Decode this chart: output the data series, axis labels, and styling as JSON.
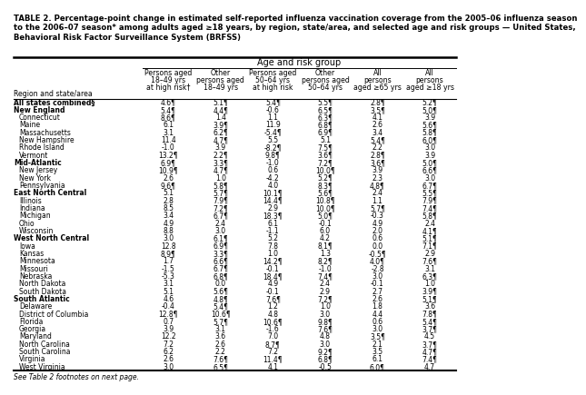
{
  "title": "TABLE 2. Percentage-point change in estimated self-reported influenza vaccination coverage from the 2005–06 influenza season\nto the 2006–07 season* among adults aged ≥18 years, by region, state/area, and selected age and risk groups — United States,\nBehavioral Risk Factor Surveillance System (BRFSS)",
  "col_headers_line1": [
    "Persons aged",
    "Other",
    "Persons aged",
    "Other",
    "All",
    "All"
  ],
  "col_headers_line2": [
    "18–49 yrs",
    "persons aged",
    "50–64 yrs",
    "persons aged",
    "persons",
    "persons"
  ],
  "col_headers_line3": [
    "at high risk†",
    "18–49 yrs",
    "at high risk",
    "50–64 yrs",
    "aged ≥65 yrs",
    "aged ≥18 yrs"
  ],
  "col_header_span": "Age and risk group",
  "row_label_header": "Region and state/area",
  "rows": [
    {
      "label": "All states combined§",
      "bold": true,
      "indent": 0,
      "vals": [
        "4.6¶",
        "5.1¶",
        "5.4¶",
        "5.5¶",
        "2.8¶",
        "5.2¶"
      ]
    },
    {
      "label": "New England",
      "bold": true,
      "indent": 0,
      "vals": [
        "5.4¶",
        "4.4¶",
        "-0.6",
        "6.5¶",
        "3.5¶",
        "5.0¶"
      ]
    },
    {
      "label": "Connecticut",
      "bold": false,
      "indent": 1,
      "vals": [
        "8.6¶",
        "1.4",
        "1.1",
        "6.3¶",
        "4.1",
        "3.9"
      ]
    },
    {
      "label": "Maine",
      "bold": false,
      "indent": 1,
      "vals": [
        "6.1",
        "3.9¶",
        "11.9",
        "6.8¶",
        "2.6",
        "5.6¶"
      ]
    },
    {
      "label": "Massachusetts",
      "bold": false,
      "indent": 1,
      "vals": [
        "3.1",
        "6.2¶",
        "-5.4¶",
        "6.9¶",
        "3.4",
        "5.8¶"
      ]
    },
    {
      "label": "New Hampshire",
      "bold": false,
      "indent": 1,
      "vals": [
        "11.4",
        "4.7¶",
        "5.5",
        "5.1",
        "5.4¶",
        "6.0¶"
      ]
    },
    {
      "label": "Rhode Island",
      "bold": false,
      "indent": 1,
      "vals": [
        "-1.0",
        "3.9",
        "-8.2¶",
        "7.5¶",
        "2.2",
        "3.0"
      ]
    },
    {
      "label": "Vermont",
      "bold": false,
      "indent": 1,
      "vals": [
        "13.2¶",
        "2.2¶",
        "9.8¶",
        "3.6¶",
        "2.8¶",
        "3.9"
      ]
    },
    {
      "label": "Mid-Atlantic",
      "bold": true,
      "indent": 0,
      "vals": [
        "6.9¶",
        "3.3¶",
        "-1.0",
        "7.2¶",
        "3.6¶",
        "5.0¶"
      ]
    },
    {
      "label": "New Jersey",
      "bold": false,
      "indent": 1,
      "vals": [
        "10.9¶",
        "4.7¶",
        "0.6",
        "10.0¶",
        "3.9",
        "6.6¶"
      ]
    },
    {
      "label": "New York",
      "bold": false,
      "indent": 1,
      "vals": [
        "2.6",
        "1.0",
        "-4.2",
        "5.2¶",
        "2.3",
        "3.0"
      ]
    },
    {
      "label": "Pennsylvania",
      "bold": false,
      "indent": 1,
      "vals": [
        "9.6¶",
        "5.8¶",
        "4.0",
        "8.3¶",
        "4.8¶",
        "6.7¶"
      ]
    },
    {
      "label": "East North Central",
      "bold": true,
      "indent": 0,
      "vals": [
        "5.1",
        "5.7¶",
        "10.1¶",
        "5.6¶",
        "2.4",
        "5.5¶"
      ]
    },
    {
      "label": "Illinois",
      "bold": false,
      "indent": 1,
      "vals": [
        "2.8",
        "7.9¶",
        "14.4¶",
        "10.8¶",
        "1.1",
        "7.9¶"
      ]
    },
    {
      "label": "Indiana",
      "bold": false,
      "indent": 1,
      "vals": [
        "8.5",
        "7.2¶",
        "2.9",
        "10.0¶",
        "5.7¶",
        "7.4¶"
      ]
    },
    {
      "label": "Michigan",
      "bold": false,
      "indent": 1,
      "vals": [
        "3.4",
        "6.7¶",
        "18.3¶",
        "5.0¶",
        "-0.3",
        "5.8¶"
      ]
    },
    {
      "label": "Ohio",
      "bold": false,
      "indent": 1,
      "vals": [
        "4.9",
        "2.4",
        "6.1",
        "-0.1",
        "4.9",
        "2.4"
      ]
    },
    {
      "label": "Wisconsin",
      "bold": false,
      "indent": 1,
      "vals": [
        "8.8",
        "3.0",
        "-1.1",
        "6.0",
        "2.0",
        "4.1¶"
      ]
    },
    {
      "label": "West North Central",
      "bold": true,
      "indent": 0,
      "vals": [
        "3.0",
        "6.1¶",
        "5.2",
        "4.2",
        "0.6",
        "5.1¶"
      ]
    },
    {
      "label": "Iowa",
      "bold": false,
      "indent": 1,
      "vals": [
        "12.8",
        "6.9¶",
        "7.8",
        "8.1¶",
        "0.0",
        "7.1¶"
      ]
    },
    {
      "label": "Kansas",
      "bold": false,
      "indent": 1,
      "vals": [
        "8.9¶",
        "3.3¶",
        "1.0",
        "1.3",
        "-0.5¶",
        "2.9"
      ]
    },
    {
      "label": "Minnesota",
      "bold": false,
      "indent": 1,
      "vals": [
        "1.7",
        "6.6¶",
        "14.2¶",
        "8.2¶",
        "4.0¶",
        "7.6¶"
      ]
    },
    {
      "label": "Missouri",
      "bold": false,
      "indent": 1,
      "vals": [
        "-1.5",
        "6.7¶",
        "-0.1",
        "-1.0",
        "-2.8",
        "3.1"
      ]
    },
    {
      "label": "Nebraska",
      "bold": false,
      "indent": 1,
      "vals": [
        "-5.3",
        "6.8¶",
        "18.4¶",
        "7.4¶",
        "3.0",
        "6.3¶"
      ]
    },
    {
      "label": "North Dakota",
      "bold": false,
      "indent": 1,
      "vals": [
        "3.1",
        "0.0",
        "4.9",
        "2.4",
        "-0.1",
        "1.0"
      ]
    },
    {
      "label": "South Dakota",
      "bold": false,
      "indent": 1,
      "vals": [
        "5.1",
        "5.6¶",
        "-0.1",
        "2.9",
        "2.7",
        "3.9¶"
      ]
    },
    {
      "label": "South Atlantic",
      "bold": true,
      "indent": 0,
      "vals": [
        "4.6",
        "4.8¶",
        "7.6¶",
        "7.2¶",
        "2.6",
        "5.1¶"
      ]
    },
    {
      "label": "Delaware",
      "bold": false,
      "indent": 1,
      "vals": [
        "-0.4",
        "5.4¶",
        "1.2",
        "1.0",
        "1.8",
        "3.6"
      ]
    },
    {
      "label": "District of Columbia",
      "bold": false,
      "indent": 1,
      "vals": [
        "12.8¶",
        "10.6¶",
        "4.8",
        "3.0",
        "4.4",
        "7.8¶"
      ]
    },
    {
      "label": "Florida",
      "bold": false,
      "indent": 1,
      "vals": [
        "0.7",
        "5.7¶",
        "10.6¶",
        "9.8¶",
        "0.6",
        "5.4¶"
      ]
    },
    {
      "label": "Georgia",
      "bold": false,
      "indent": 1,
      "vals": [
        "3.9",
        "3.1",
        "-1.6",
        "7.6¶",
        "3.0",
        "3.7¶"
      ]
    },
    {
      "label": "Maryland",
      "bold": false,
      "indent": 1,
      "vals": [
        "12.2",
        "3.6",
        "7.0",
        "4.8",
        "3.5¶",
        "4.5"
      ]
    },
    {
      "label": "North Carolina",
      "bold": false,
      "indent": 1,
      "vals": [
        "7.2",
        "2.6",
        "8.7¶",
        "3.0",
        "2.1",
        "3.7¶"
      ]
    },
    {
      "label": "South Carolina",
      "bold": false,
      "indent": 1,
      "vals": [
        "6.2",
        "2.2",
        "7.2",
        "9.2¶",
        "3.5",
        "4.7¶"
      ]
    },
    {
      "label": "Virginia",
      "bold": false,
      "indent": 1,
      "vals": [
        "2.6",
        "7.6¶",
        "11.4¶",
        "6.8¶",
        "6.1",
        "7.4¶"
      ]
    },
    {
      "label": "West Virginia",
      "bold": false,
      "indent": 1,
      "vals": [
        "3.0",
        "6.5¶",
        "4.1",
        "-0.5",
        "6.0¶",
        "4.7"
      ]
    }
  ],
  "footnote": "See Table 2 footnotes on next page."
}
